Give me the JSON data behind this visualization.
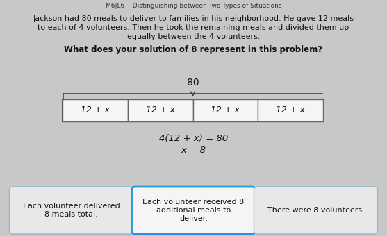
{
  "title_top": "M6|L6    Distinguishing between Two Types of Situations",
  "para_line1": "Jackson had 80 meals to deliver to families in his neighborhood. He gave 12 meals",
  "para_line2": "to each of 4 volunteers. Then he took the remaining meals and divided them up",
  "para_line3": "equally between the 4 volunteers.",
  "question": "What does your solution of 8 represent in this problem?",
  "bar_label": "80",
  "cell_text": "12 + x",
  "num_cells": 4,
  "equation1": "4(12 + x) = 80",
  "equation2": "x = 8",
  "choice1": "Each volunteer delivered\n8 meals total.",
  "choice2": "Each volunteer received 8\nadditional meals to\ndeliver.",
  "choice3": "There were 8 volunteers.",
  "bg_color": "#c8c8c8",
  "bar_cell_bg": "#f0f0f0",
  "bar_border": "#555555",
  "choice1_border": "#88bbcc",
  "choice2_border": "#2299dd",
  "choice3_border": "#88bbcc",
  "choice_bg": "#e8e8e8",
  "choice2_bg": "#f5f5f5",
  "text_color": "#111111",
  "header_color": "#333333",
  "question_color": "#111111"
}
